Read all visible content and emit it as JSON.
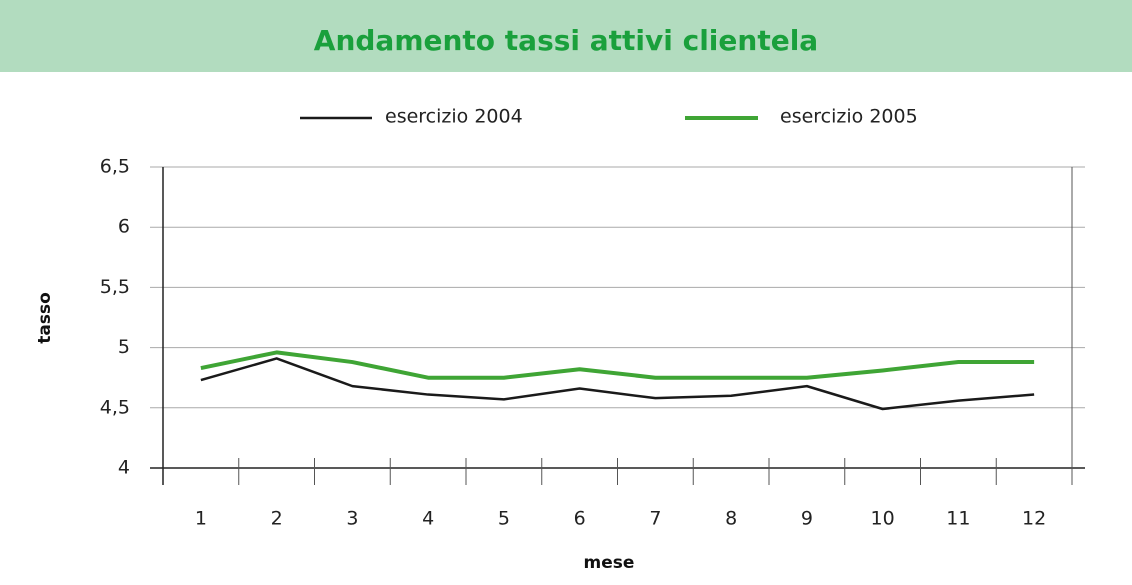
{
  "chart_data": {
    "type": "line",
    "title": "Andamento tassi attivi clientela",
    "x_label": "mese",
    "y_label": "tasso",
    "categories": [
      "1",
      "2",
      "3",
      "4",
      "5",
      "6",
      "7",
      "8",
      "9",
      "10",
      "11",
      "12"
    ],
    "series": [
      {
        "name": "esercizio 2004",
        "color": "#1a1a1a",
        "values": [
          4.73,
          4.91,
          4.68,
          4.61,
          4.57,
          4.66,
          4.58,
          4.6,
          4.68,
          4.49,
          4.56,
          4.61
        ]
      },
      {
        "name": "esercizio 2005",
        "color": "#3fa535",
        "values": [
          4.83,
          4.96,
          4.88,
          4.75,
          4.75,
          4.82,
          4.75,
          4.75,
          4.75,
          4.81,
          4.88,
          4.88
        ]
      }
    ],
    "ylim": [
      4,
      6.5
    ],
    "yticks": [
      4,
      {
        "value": 4.5,
        "label": "4,5"
      },
      5,
      {
        "value": 5.5,
        "label": "5,5"
      },
      6,
      {
        "value": 6.5,
        "label": "6,5"
      }
    ],
    "grid": true,
    "legend": "top"
  }
}
